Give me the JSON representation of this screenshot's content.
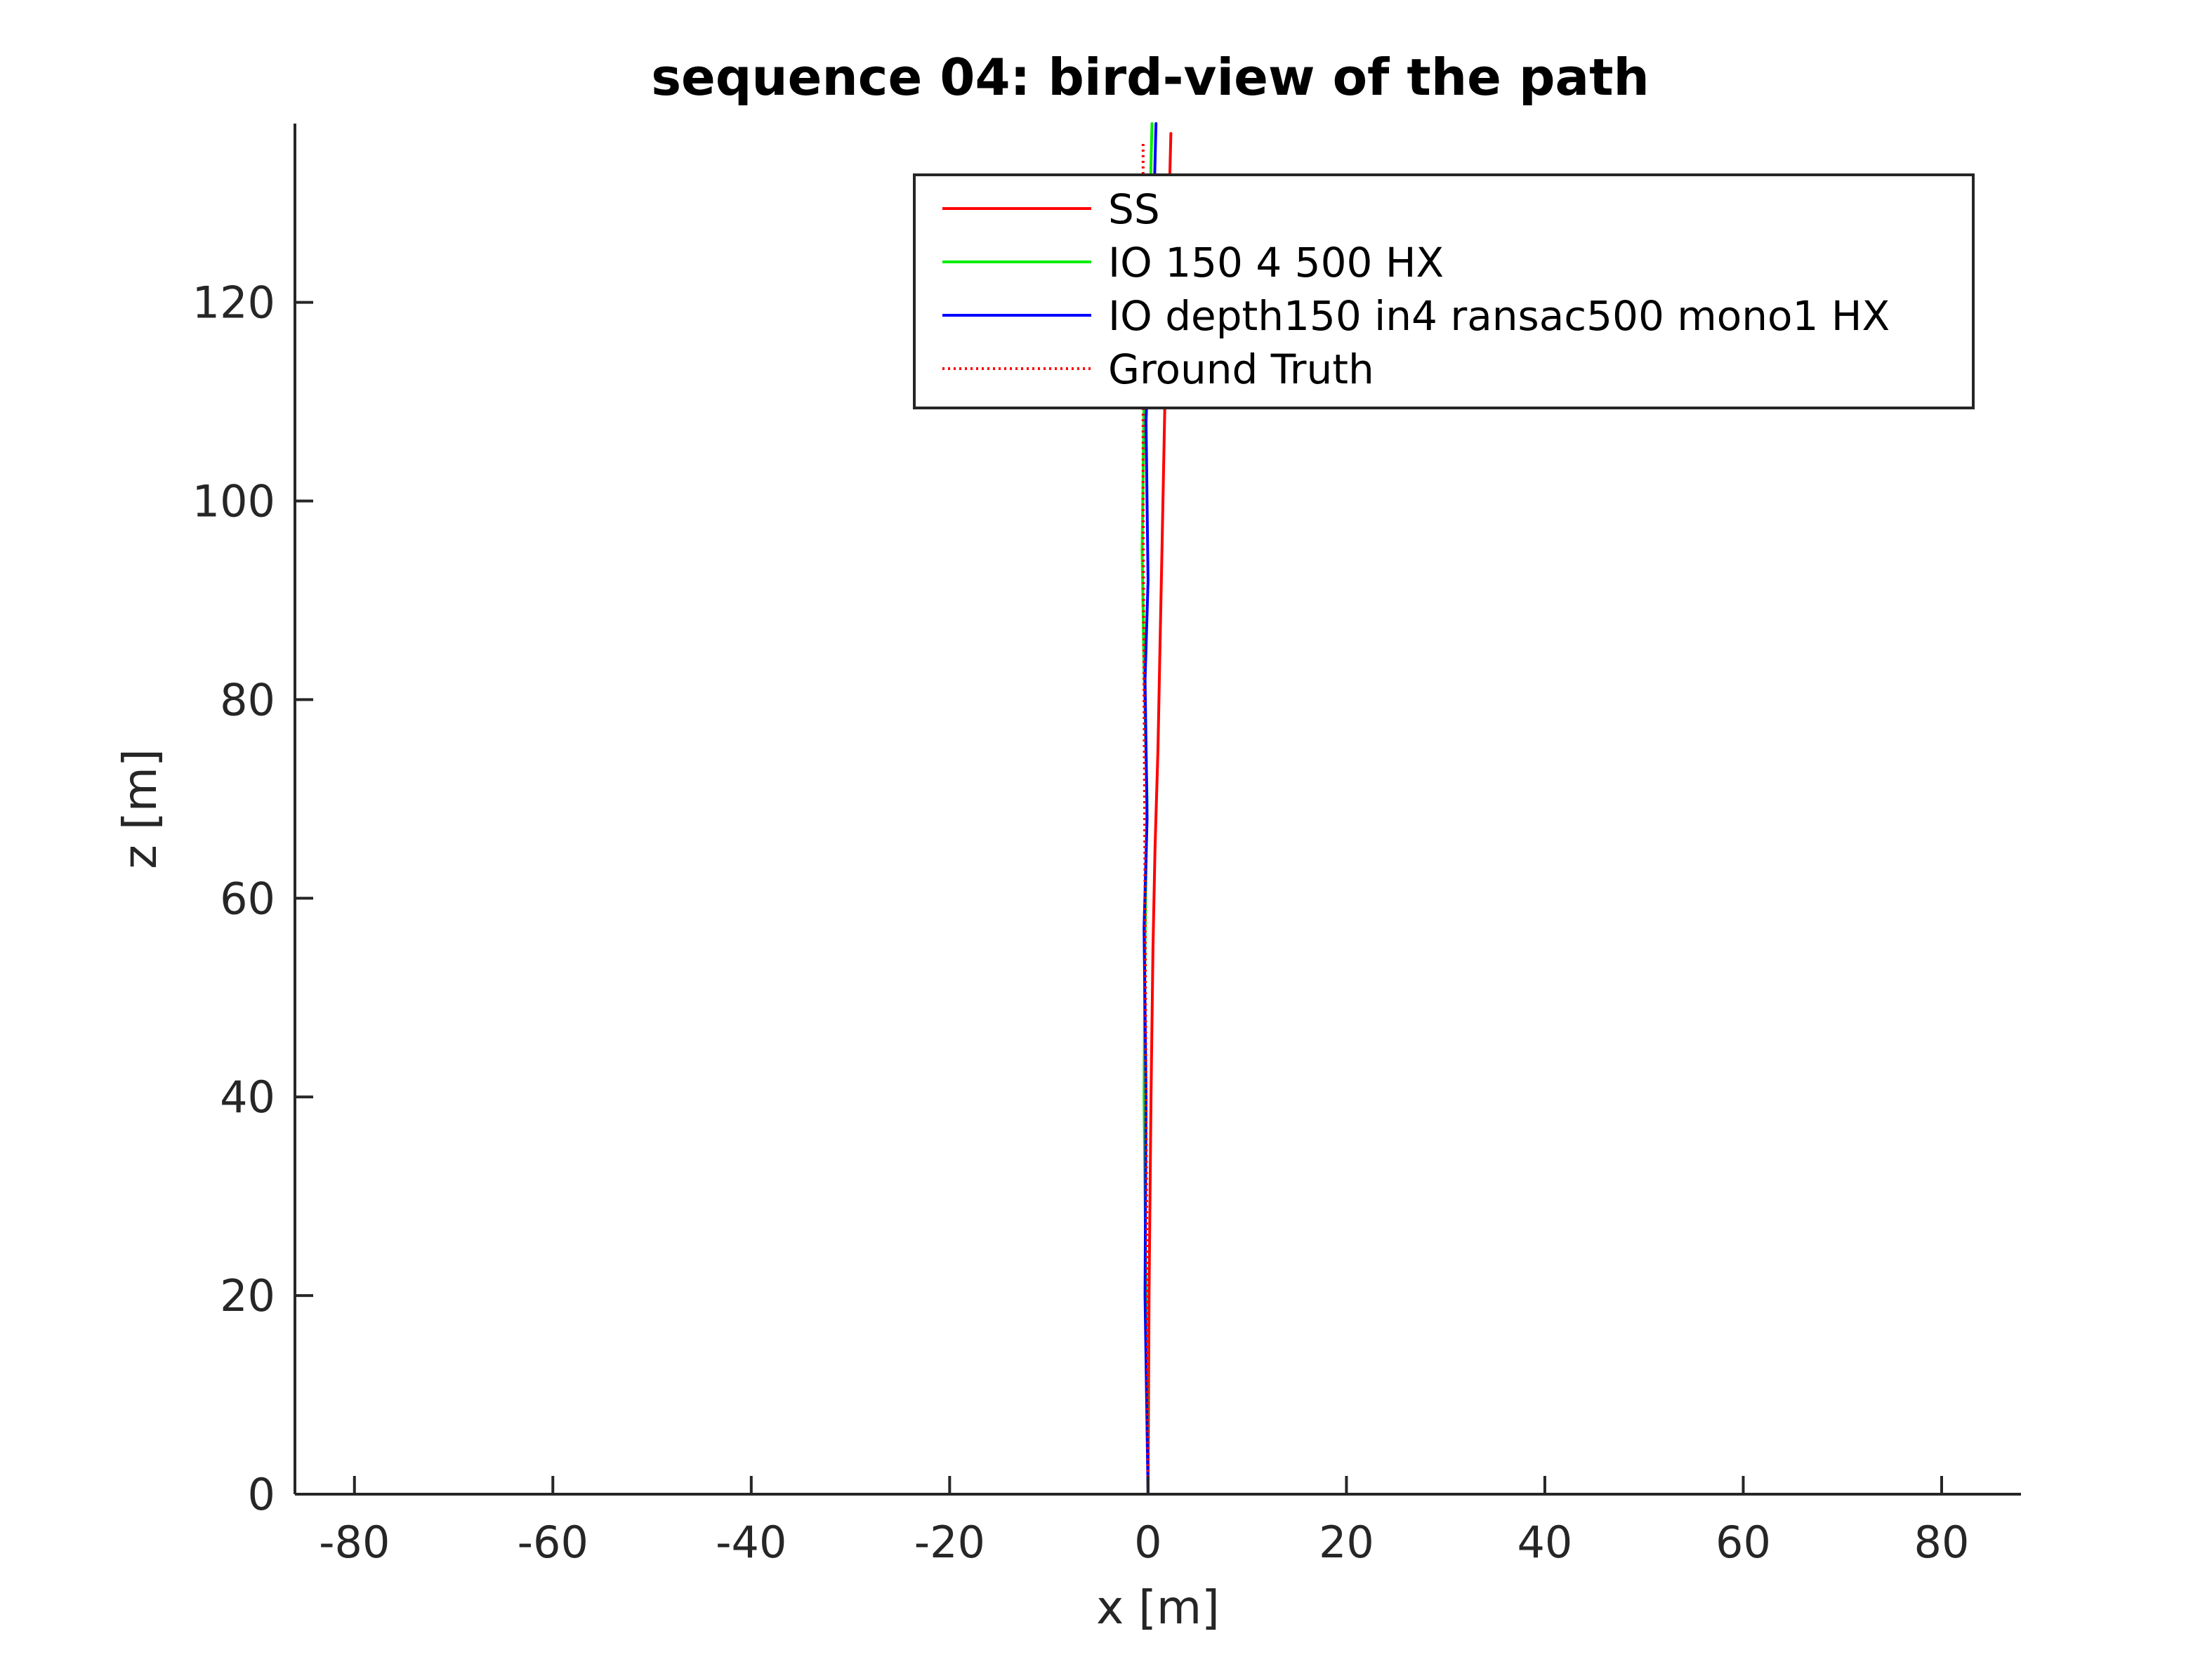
{
  "chart_data": {
    "type": "line",
    "title": "sequence 04: bird-view of the path",
    "xlabel": "x [m]",
    "ylabel": "z [m]",
    "xlim": [
      -86,
      88
    ],
    "ylim": [
      0,
      138
    ],
    "xticks": [
      -80,
      -60,
      -40,
      -20,
      0,
      20,
      40,
      60,
      80
    ],
    "yticks": [
      0,
      20,
      40,
      60,
      80,
      100,
      120
    ],
    "xtick_labels": [
      "-80",
      "-60",
      "-40",
      "-20",
      "0",
      "20",
      "40",
      "60",
      "80"
    ],
    "ytick_labels": [
      "0",
      "20",
      "40",
      "60",
      "80",
      "100",
      "120"
    ],
    "grid": false,
    "legend_position": "top-right",
    "series": [
      {
        "name": "SS",
        "color": "#ff0000",
        "style": "solid",
        "x": [
          0.0,
          0.1,
          0.3,
          0.5,
          0.7,
          1.0,
          1.2,
          1.4,
          1.6,
          1.8,
          2.0,
          2.3
        ],
        "y": [
          0,
          20,
          40,
          55,
          65,
          75,
          85,
          95,
          105,
          115,
          125,
          137
        ]
      },
      {
        "name": "IO 150 4 500 HX",
        "color": "#00ee00",
        "style": "solid",
        "x": [
          0.0,
          -0.2,
          -0.4,
          -0.3,
          -0.1,
          -0.4,
          -0.6,
          -0.4,
          -0.1,
          0.2,
          0.4
        ],
        "y": [
          0,
          20,
          40,
          56,
          70,
          83,
          95,
          110,
          122,
          130,
          138
        ]
      },
      {
        "name": "IO depth150 in4 ransac500 mono1 HX",
        "color": "#0000ff",
        "style": "solid",
        "x": [
          0.0,
          -0.3,
          -0.2,
          -0.4,
          -0.1,
          -0.3,
          0.0,
          -0.2,
          0.3,
          0.6,
          0.8
        ],
        "y": [
          0,
          20,
          40,
          57,
          68,
          82,
          92,
          108,
          122,
          130,
          138
        ]
      },
      {
        "name": "Ground Truth",
        "color": "#ff0000",
        "style": "dotted",
        "x": [
          0.0,
          -0.1,
          -0.2,
          -0.3,
          -0.4,
          -0.5,
          -0.5,
          -0.5
        ],
        "y": [
          0,
          20,
          40,
          60,
          80,
          100,
          120,
          136
        ]
      }
    ]
  }
}
